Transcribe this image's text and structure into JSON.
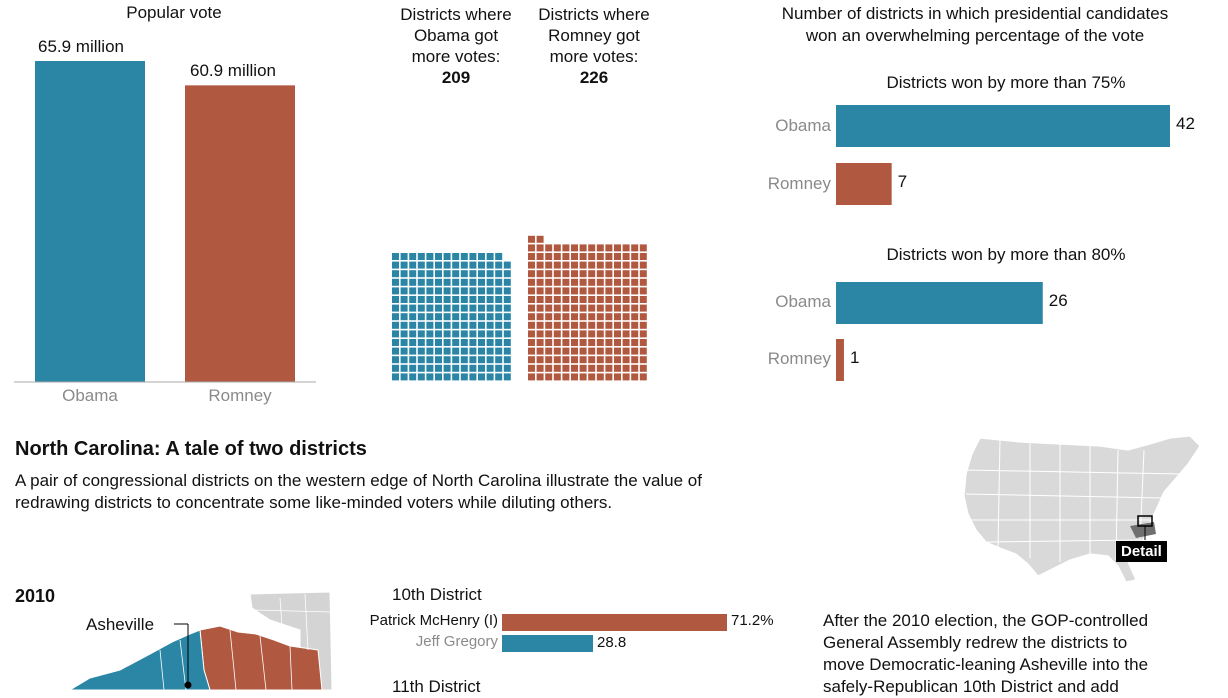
{
  "colors": {
    "obama": "#2b86a6",
    "romney": "#b05940",
    "muted": "#8a8a8a",
    "map_gray": "#d9d9d9"
  },
  "popular_vote": {
    "title": "Popular vote",
    "obama_value_label": "65.9 million",
    "romney_value_label": "60.9 million",
    "obama_label": "Obama",
    "romney_label": "Romney"
  },
  "districts": {
    "obama_title_lines": [
      "Districts where",
      "Obama got",
      "more votes:"
    ],
    "obama_count": "209",
    "romney_title_lines": [
      "Districts where",
      "Romney got",
      "more votes:"
    ],
    "romney_count": "226"
  },
  "overwhelming": {
    "title_lines": [
      "Number of districts in which presidential candidates",
      "won an overwhelming percentage of the vote"
    ],
    "group1_title": "Districts won by more than 75%",
    "group2_title": "Districts won by more than 80%",
    "obama_label": "Obama",
    "romney_label": "Romney"
  },
  "nc": {
    "title": "North Carolina: A tale of two districts",
    "desc_lines": [
      "A pair of congressional districts on the western edge of North Carolina illustrate the value of",
      "redrawing districts to concentrate some like-minded voters while diluting others."
    ],
    "detail_label": "Detail",
    "year": "2010",
    "city": "Asheville",
    "district10_title": "10th District",
    "district11_title": "11th District",
    "after_lines": [
      "After the 2010 election, the GOP-controlled",
      "General Assembly redrew the districts to",
      "move Democratic-leaning Asheville into the",
      "safely-Republican 10th District and add"
    ]
  },
  "chart_data": [
    {
      "type": "bar",
      "title": "Popular vote",
      "categories": [
        "Obama",
        "Romney"
      ],
      "values": [
        65.9,
        60.9
      ],
      "value_labels": [
        "65.9 million",
        "60.9 million"
      ],
      "ylim": [
        0,
        70
      ]
    },
    {
      "type": "bar",
      "categories": [
        "Districts where Obama got more votes:",
        "Districts where Romney got more votes:"
      ],
      "values": [
        209,
        226
      ]
    },
    {
      "type": "bar",
      "title": "Districts won by more than 75%",
      "categories": [
        "Obama",
        "Romney"
      ],
      "values": [
        42,
        7
      ],
      "value_labels": [
        "42",
        "7"
      ],
      "xlim": [
        0,
        42
      ]
    },
    {
      "type": "bar",
      "title": "Districts won by more than 80%",
      "categories": [
        "Obama",
        "Romney"
      ],
      "values": [
        26,
        1
      ],
      "value_labels": [
        "26",
        "1"
      ],
      "xlim": [
        0,
        42
      ]
    },
    {
      "type": "bar",
      "title": "10th District",
      "categories": [
        "Patrick McHenry (I)",
        "Jeff Gregory"
      ],
      "values": [
        71.2,
        28.8
      ],
      "value_labels": [
        "71.2%",
        "28.8"
      ],
      "xlim": [
        0,
        71.2
      ]
    }
  ]
}
